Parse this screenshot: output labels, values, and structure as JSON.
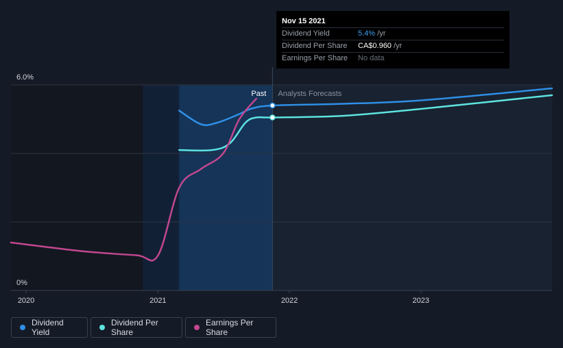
{
  "tooltip": {
    "date": "Nov 15 2021",
    "rows": [
      {
        "label": "Dividend Yield",
        "value": "5.4%",
        "unit": " /yr",
        "color": "#3b9ef0"
      },
      {
        "label": "Dividend Per Share",
        "value": "CA$0.960",
        "unit": " /yr",
        "color": "#ffffff"
      },
      {
        "label": "Earnings Per Share",
        "value": "No data",
        "unit": "",
        "color": "#6a717c"
      }
    ]
  },
  "region_labels": {
    "past": "Past",
    "forecast": "Analysts Forecasts"
  },
  "colors": {
    "background": "#151b26",
    "dividend_yield": "#2f8fe6",
    "dividend_per_share": "#5ee3e0",
    "earnings_per_share": "#c2478f"
  },
  "chart_data": {
    "type": "line",
    "y_tick_labels": [
      "6.0%",
      "0%"
    ],
    "ylim": [
      0,
      6.0
    ],
    "x_tick_labels": [
      "2020",
      "2021",
      "2022",
      "2023"
    ],
    "xlim": [
      "2019-11-20",
      "2023-12-31"
    ],
    "grid": true,
    "legend_position": "bottom-left",
    "series": [
      {
        "name": "Dividend Yield",
        "points": [
          [
            "2021-03-01",
            5.25
          ],
          [
            "2021-05-01",
            4.85
          ],
          [
            "2021-06-15",
            4.9
          ],
          [
            "2021-08-15",
            5.15
          ],
          [
            "2021-09-15",
            5.3
          ],
          [
            "2021-11-15",
            5.4
          ],
          [
            "2022-06-01",
            5.45
          ],
          [
            "2023-01-01",
            5.55
          ],
          [
            "2023-12-31",
            5.9
          ]
        ]
      },
      {
        "name": "Dividend Per Share",
        "points": [
          [
            "2021-03-01",
            4.1
          ],
          [
            "2021-06-01",
            4.1
          ],
          [
            "2021-07-20",
            4.3
          ],
          [
            "2021-09-01",
            4.9
          ],
          [
            "2021-10-01",
            5.05
          ],
          [
            "2021-11-15",
            5.05
          ],
          [
            "2022-06-01",
            5.1
          ],
          [
            "2023-01-01",
            5.3
          ],
          [
            "2023-12-31",
            5.7
          ]
        ]
      },
      {
        "name": "Earnings Per Share",
        "points": [
          [
            "2019-11-20",
            1.4
          ],
          [
            "2020-06-01",
            1.15
          ],
          [
            "2020-11-01",
            1.03
          ],
          [
            "2021-01-01",
            1.02
          ],
          [
            "2021-03-01",
            3.0
          ],
          [
            "2021-05-01",
            3.55
          ],
          [
            "2021-07-01",
            4.0
          ],
          [
            "2021-08-15",
            5.0
          ],
          [
            "2021-10-01",
            5.6
          ]
        ]
      }
    ]
  },
  "legend": {
    "items": [
      {
        "label": "Dividend Yield",
        "color": "#2f8fe6"
      },
      {
        "label": "Dividend Per Share",
        "color": "#5ee3e0"
      },
      {
        "label": "Earnings Per Share",
        "color": "#c2478f"
      }
    ]
  }
}
